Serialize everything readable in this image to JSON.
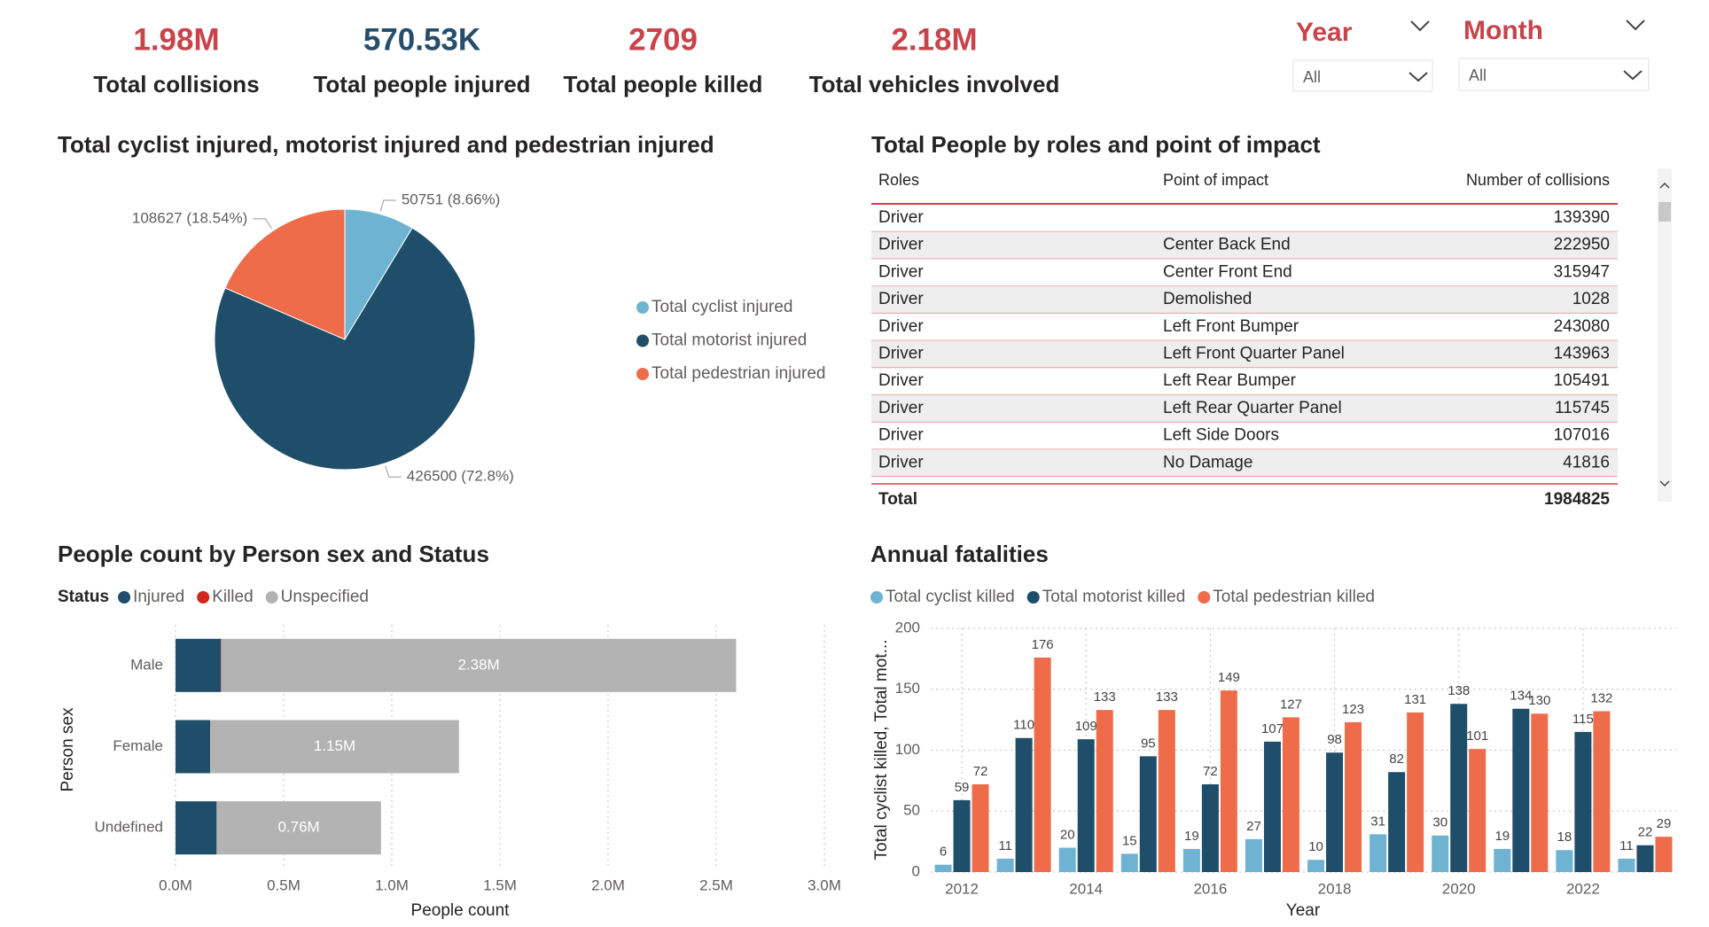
{
  "kpis": [
    {
      "value": "1.98M",
      "label": "Total collisions",
      "color": "#c8434a"
    },
    {
      "value": "570.53K",
      "label": "Total people injured",
      "color": "#264d6b"
    },
    {
      "value": "2709",
      "label": "Total people killed",
      "color": "#c8434a"
    },
    {
      "value": "2.18M",
      "label": "Total vehicles involved",
      "color": "#c8434a"
    }
  ],
  "slicers": [
    {
      "title": "Year",
      "value": "All"
    },
    {
      "title": "Month",
      "value": "All"
    }
  ],
  "table": {
    "title": "Total People by roles and point of impact",
    "columns": [
      "Roles",
      "Point of impact",
      "Number of collisions"
    ],
    "rows": [
      [
        "Driver",
        null,
        139390
      ],
      [
        "Driver",
        "Center Back End",
        222950
      ],
      [
        "Driver",
        "Center Front End",
        315947
      ],
      [
        "Driver",
        "Demolished",
        1028
      ],
      [
        "Driver",
        "Left Front Bumper",
        243080
      ],
      [
        "Driver",
        "Left Front Quarter Panel",
        143963
      ],
      [
        "Driver",
        "Left Rear Bumper",
        105491
      ],
      [
        "Driver",
        "Left Rear Quarter Panel",
        115745
      ],
      [
        "Driver",
        "Left Side Doors",
        107016
      ],
      [
        "Driver",
        "No Damage",
        41816
      ]
    ],
    "total": [
      "Total",
      1984825
    ]
  },
  "chart_data": [
    {
      "type": "pie",
      "title": "Total cyclist injured, motorist injured and pedestrian injured",
      "categories": [
        "Total cyclist injured",
        "Total motorist injured",
        "Total pedestrian injured"
      ],
      "values": [
        50751,
        426500,
        108627
      ],
      "value_labels": [
        "50751 (8.66%)",
        "426500 (72.8%)",
        "108627 (18.54%)"
      ],
      "colors": [
        "#6fb3d2",
        "#1f4e6a",
        "#ef6c4b"
      ],
      "legend": "right"
    },
    {
      "type": "bar",
      "orientation": "horizontal",
      "stacked": true,
      "title": "People count by Person sex and Status",
      "legend_title": "Status",
      "legend": "top",
      "categories": [
        "Male",
        "Female",
        "Undefined"
      ],
      "series": [
        {
          "name": "Injured",
          "color": "#1f4e6a",
          "values": [
            210000,
            160000,
            190000
          ]
        },
        {
          "name": "Killed",
          "color": "#d0281e",
          "values": [
            2000,
            600,
            100
          ]
        },
        {
          "name": "Unspecified",
          "color": "#b3b3b3",
          "values": [
            2380000,
            1150000,
            760000
          ],
          "value_labels": [
            "2.38M",
            "1.15M",
            "0.76M"
          ]
        }
      ],
      "xlim": [
        0,
        3000000
      ],
      "xticks": [
        {
          "value": 0,
          "label": "0.0M"
        },
        {
          "value": 500000,
          "label": "0.5M"
        },
        {
          "value": 1000000,
          "label": "1.0M"
        },
        {
          "value": 1500000,
          "label": "1.5M"
        },
        {
          "value": 2000000,
          "label": "2.0M"
        },
        {
          "value": 2500000,
          "label": "2.5M"
        },
        {
          "value": 3000000,
          "label": "3.0M"
        }
      ],
      "x_label": "People count",
      "y_label": "Person sex",
      "grid": true
    },
    {
      "type": "grouped-bar",
      "title": "Annual fatalities",
      "legend": "top",
      "x": [
        2012,
        2013,
        2014,
        2015,
        2016,
        2017,
        2018,
        2019,
        2020,
        2021,
        2022,
        2023
      ],
      "series": [
        {
          "name": "Total cyclist killed",
          "color": "#6fb3d2",
          "values": [
            6,
            11,
            20,
            15,
            19,
            27,
            10,
            31,
            30,
            19,
            18,
            11
          ]
        },
        {
          "name": "Total motorist killed",
          "color": "#1f4e6a",
          "values": [
            59,
            110,
            109,
            95,
            72,
            107,
            98,
            82,
            138,
            134,
            115,
            22
          ]
        },
        {
          "name": "Total pedestrian killed",
          "color": "#ef6c4b",
          "values": [
            72,
            176,
            133,
            133,
            149,
            127,
            123,
            131,
            101,
            130,
            132,
            29
          ]
        }
      ],
      "xlim": [
        2011.5,
        2023.5
      ],
      "xticks": [
        2012,
        2014,
        2016,
        2018,
        2020,
        2022
      ],
      "ylim": [
        0,
        200
      ],
      "yticks": [
        0,
        50,
        100,
        150,
        200
      ],
      "x_label": "Year",
      "y_label": "Total cyclist killed, Total mot...",
      "grid": true
    }
  ]
}
